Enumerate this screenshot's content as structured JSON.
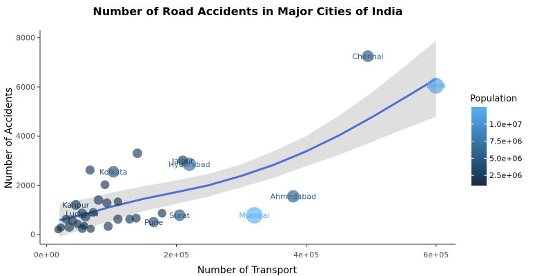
{
  "chart_data": {
    "type": "scatter",
    "title": "Number of Road Accidents in Major Cities of India",
    "xlabel": "Number of Transport",
    "ylabel": "Number of Accidents",
    "xlim": [
      -10000,
      630000
    ],
    "ylim": [
      -400,
      8300
    ],
    "x_ticks": [
      {
        "value": 0,
        "label": "0e+00"
      },
      {
        "value": 200000,
        "label": "2e+05"
      },
      {
        "value": 400000,
        "label": "4e+05"
      },
      {
        "value": 600000,
        "label": "6e+05"
      }
    ],
    "y_ticks": [
      {
        "value": 0,
        "label": "0"
      },
      {
        "value": 2000,
        "label": "2000"
      },
      {
        "value": 4000,
        "label": "4000"
      },
      {
        "value": 6000,
        "label": "6000"
      },
      {
        "value": 8000,
        "label": "8000"
      }
    ],
    "grid": false,
    "points": [
      {
        "x": 495000,
        "y": 7250,
        "pop": 4600000,
        "label": "Chennai"
      },
      {
        "x": 600000,
        "y": 6050,
        "pop": 11000000,
        "label": "Delhi"
      },
      {
        "x": 320000,
        "y": 780,
        "pop": 12500000,
        "label": "Mumbai"
      },
      {
        "x": 380000,
        "y": 1550,
        "pop": 5600000,
        "label": "Ahmedabad"
      },
      {
        "x": 220000,
        "y": 2850,
        "pop": 6800000,
        "label": "Hyderabad"
      },
      {
        "x": 210000,
        "y": 3000,
        "pop": 3100000,
        "label": "Jaipur"
      },
      {
        "x": 205000,
        "y": 780,
        "pop": 4500000,
        "label": "Surat"
      },
      {
        "x": 165000,
        "y": 500,
        "pop": 3100000,
        "label": "Pune"
      },
      {
        "x": 103000,
        "y": 2550,
        "pop": 4500000,
        "label": "Kolkata"
      },
      {
        "x": 45000,
        "y": 1200,
        "pop": 2800000,
        "label": "Kanpur"
      },
      {
        "x": 55000,
        "y": 850,
        "pop": 2800000,
        "label": "Lucknow"
      },
      {
        "x": 140000,
        "y": 3300,
        "pop": 2500000,
        "label": ""
      },
      {
        "x": 67000,
        "y": 2620,
        "pop": 2200000,
        "label": ""
      },
      {
        "x": 90000,
        "y": 2020,
        "pop": 2000000,
        "label": ""
      },
      {
        "x": 110000,
        "y": 1330,
        "pop": 1800000,
        "label": ""
      },
      {
        "x": 80000,
        "y": 1400,
        "pop": 2500000,
        "label": ""
      },
      {
        "x": 93000,
        "y": 1280,
        "pop": 2200000,
        "label": ""
      },
      {
        "x": 72000,
        "y": 900,
        "pop": 1900000,
        "label": ""
      },
      {
        "x": 60000,
        "y": 720,
        "pop": 2500000,
        "label": ""
      },
      {
        "x": 110000,
        "y": 620,
        "pop": 2300000,
        "label": ""
      },
      {
        "x": 128000,
        "y": 620,
        "pop": 2000000,
        "label": ""
      },
      {
        "x": 138000,
        "y": 660,
        "pop": 2100000,
        "label": ""
      },
      {
        "x": 178000,
        "y": 860,
        "pop": 1900000,
        "label": ""
      },
      {
        "x": 40000,
        "y": 560,
        "pop": 2200000,
        "label": ""
      },
      {
        "x": 30000,
        "y": 620,
        "pop": 2000000,
        "label": ""
      },
      {
        "x": 48000,
        "y": 420,
        "pop": 1800000,
        "label": ""
      },
      {
        "x": 35000,
        "y": 300,
        "pop": 2500000,
        "label": ""
      },
      {
        "x": 22000,
        "y": 280,
        "pop": 1700000,
        "label": ""
      },
      {
        "x": 95000,
        "y": 330,
        "pop": 2200000,
        "label": ""
      },
      {
        "x": 55000,
        "y": 240,
        "pop": 2000000,
        "label": ""
      },
      {
        "x": 68000,
        "y": 230,
        "pop": 1700000,
        "label": ""
      },
      {
        "x": 18000,
        "y": 200,
        "pop": 1500000,
        "label": ""
      },
      {
        "x": 58000,
        "y": 350,
        "pop": 1500000,
        "label": ""
      }
    ],
    "trend": [
      {
        "x": 20000,
        "y": 580
      },
      {
        "x": 60000,
        "y": 830
      },
      {
        "x": 100000,
        "y": 1130
      },
      {
        "x": 150000,
        "y": 1450
      },
      {
        "x": 200000,
        "y": 1720
      },
      {
        "x": 250000,
        "y": 2000
      },
      {
        "x": 300000,
        "y": 2380
      },
      {
        "x": 350000,
        "y": 2830
      },
      {
        "x": 400000,
        "y": 3380
      },
      {
        "x": 450000,
        "y": 4020
      },
      {
        "x": 500000,
        "y": 4750
      },
      {
        "x": 550000,
        "y": 5530
      },
      {
        "x": 600000,
        "y": 6330
      }
    ],
    "band_upper": [
      {
        "x": 20000,
        "y": 1250
      },
      {
        "x": 60000,
        "y": 1450
      },
      {
        "x": 100000,
        "y": 1700
      },
      {
        "x": 150000,
        "y": 1960
      },
      {
        "x": 200000,
        "y": 2200
      },
      {
        "x": 250000,
        "y": 2470
      },
      {
        "x": 300000,
        "y": 2850
      },
      {
        "x": 350000,
        "y": 3380
      },
      {
        "x": 400000,
        "y": 4000
      },
      {
        "x": 450000,
        "y": 4820
      },
      {
        "x": 500000,
        "y": 5750
      },
      {
        "x": 550000,
        "y": 6800
      },
      {
        "x": 600000,
        "y": 7880
      }
    ],
    "band_lower": [
      {
        "x": 20000,
        "y": -100
      },
      {
        "x": 60000,
        "y": 230
      },
      {
        "x": 100000,
        "y": 560
      },
      {
        "x": 150000,
        "y": 950
      },
      {
        "x": 200000,
        "y": 1250
      },
      {
        "x": 250000,
        "y": 1540
      },
      {
        "x": 300000,
        "y": 1920
      },
      {
        "x": 350000,
        "y": 2300
      },
      {
        "x": 400000,
        "y": 2780
      },
      {
        "x": 450000,
        "y": 3230
      },
      {
        "x": 500000,
        "y": 3750
      },
      {
        "x": 550000,
        "y": 4280
      },
      {
        "x": 600000,
        "y": 4780
      }
    ],
    "colors": {
      "low": "#132b43",
      "high": "#56b1f7",
      "trend": "#4f6fd6",
      "band": "#d9d9d9"
    },
    "legend": {
      "title": "Population",
      "placement": "right",
      "range": [
        1000000,
        12500000
      ],
      "ticks": [
        {
          "value": 2500000,
          "label": "2.5e+06"
        },
        {
          "value": 5000000,
          "label": "5.0e+06"
        },
        {
          "value": 7500000,
          "label": "7.5e+06"
        },
        {
          "value": 10000000,
          "label": "1.0e+07"
        }
      ]
    }
  }
}
